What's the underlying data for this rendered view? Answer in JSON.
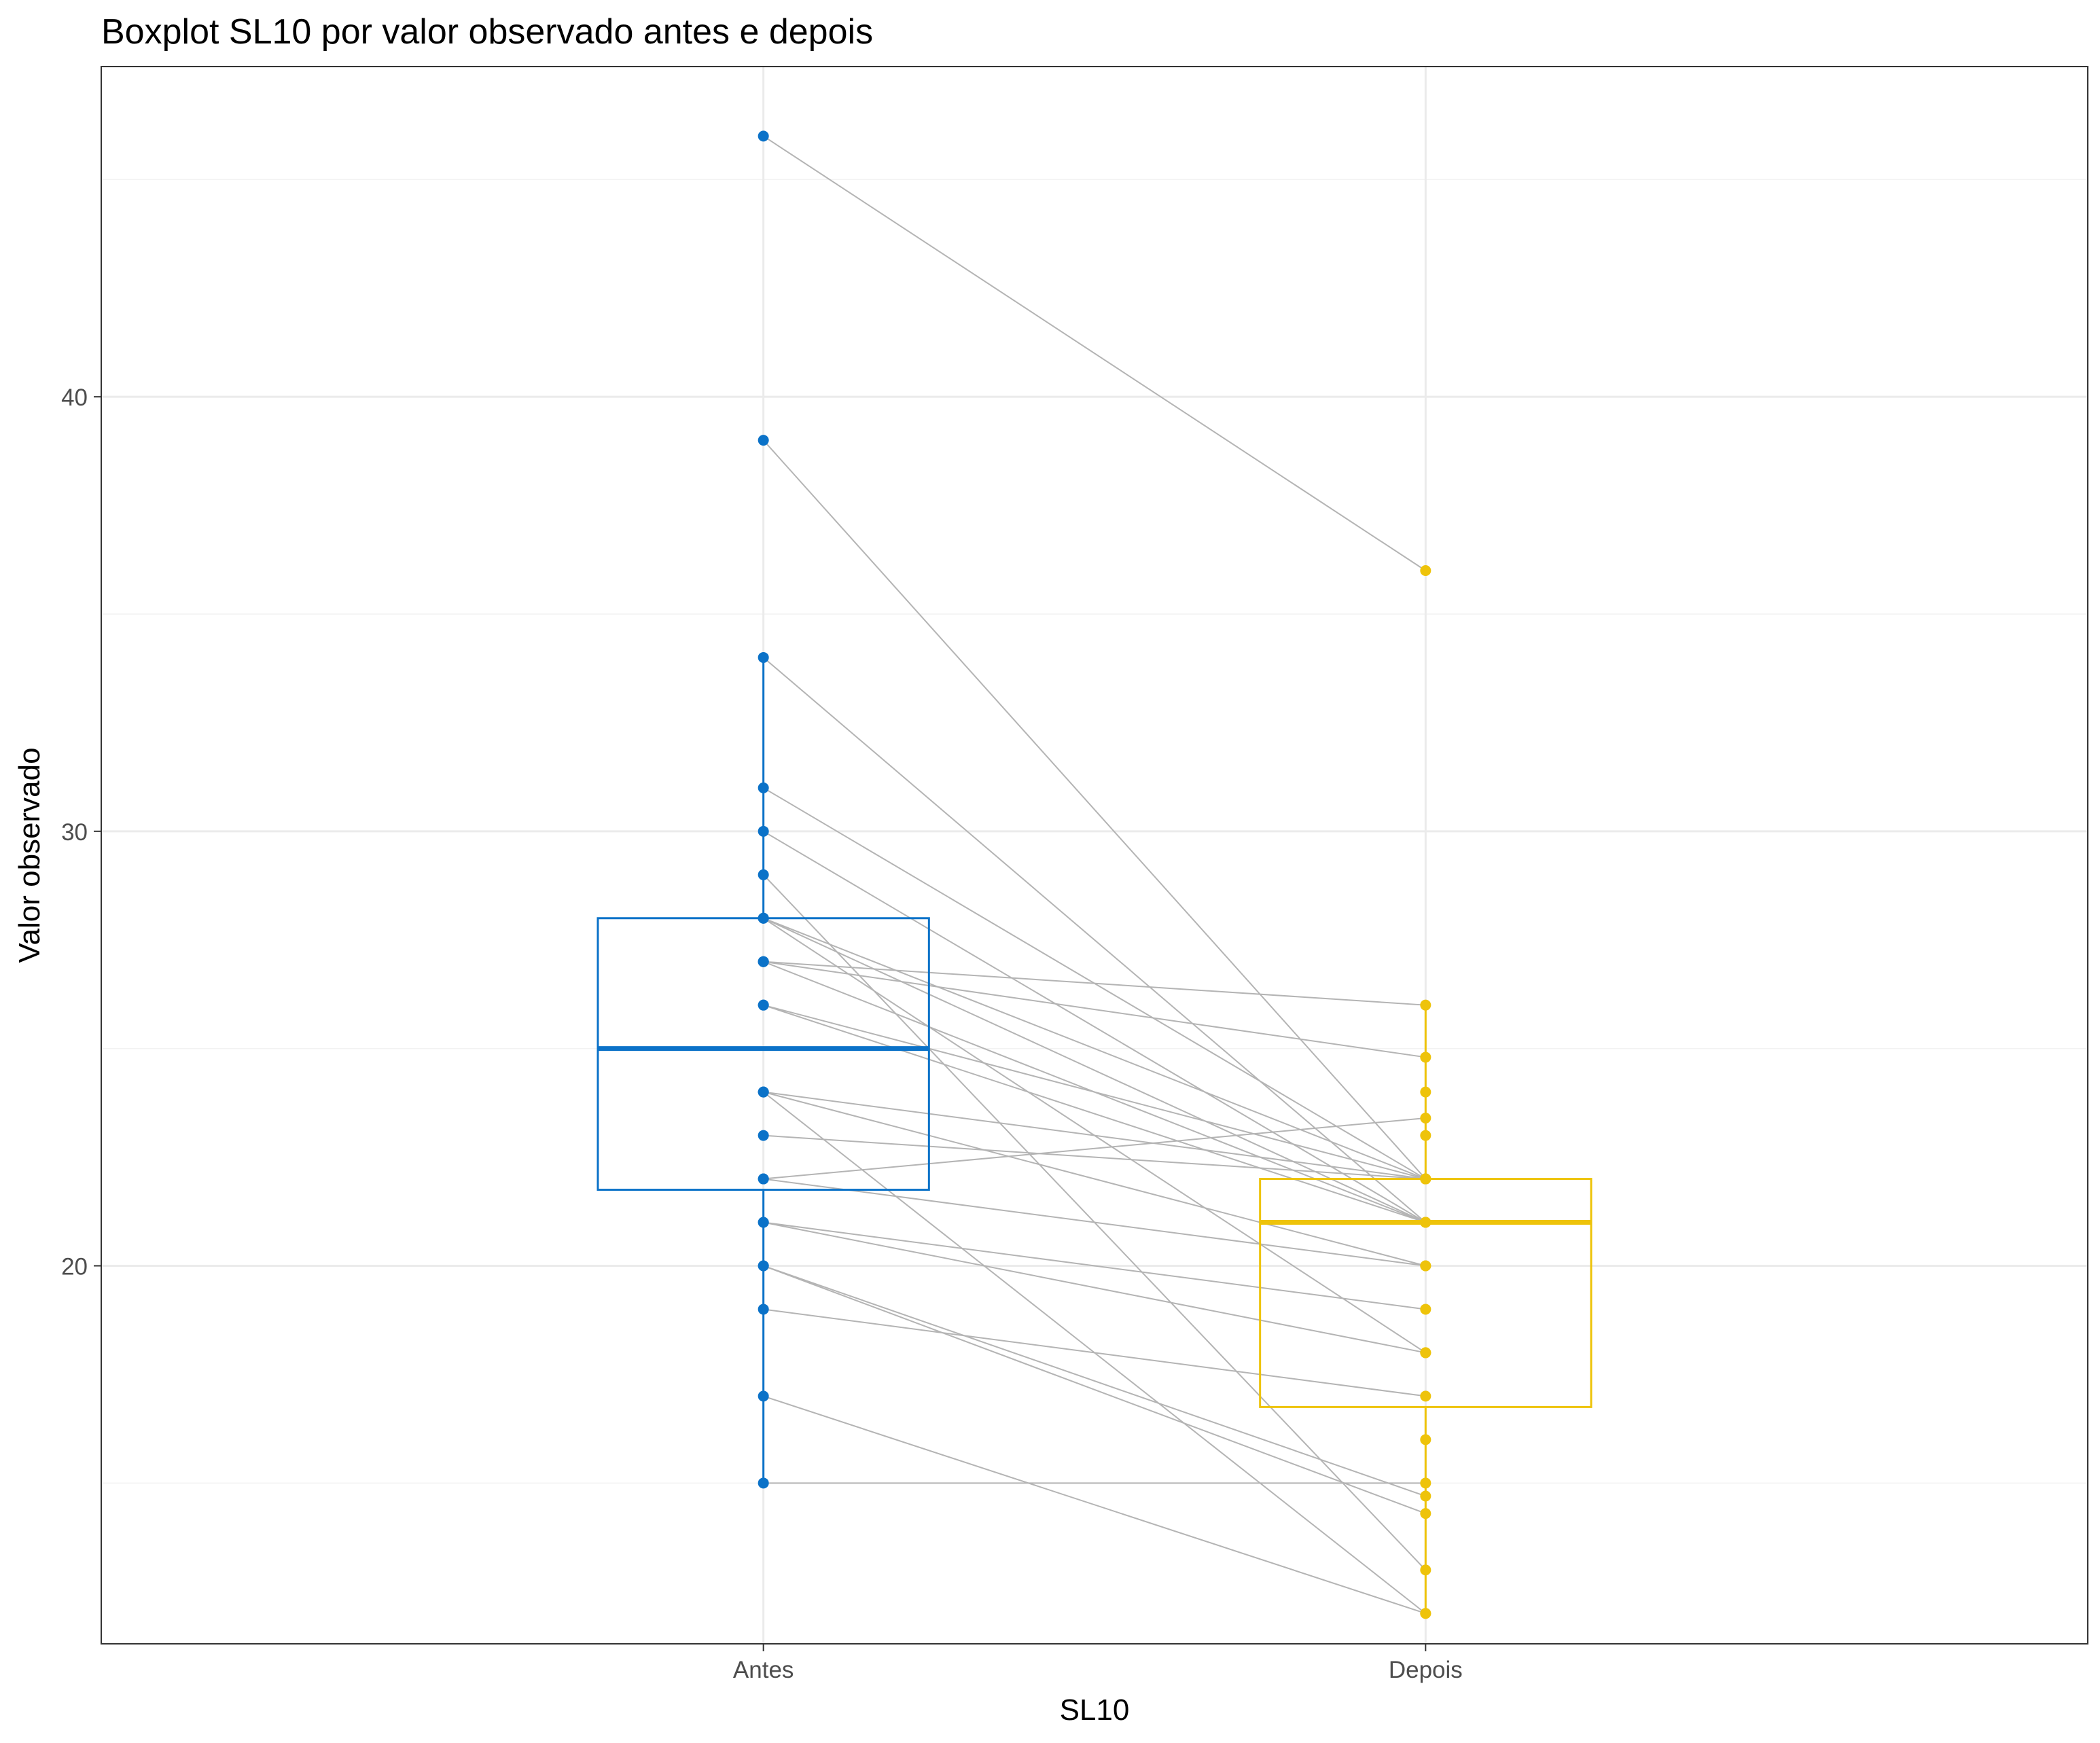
{
  "chart_data": {
    "type": "boxplot",
    "title": "Boxplot SL10 por valor observado antes e depois",
    "xlabel": "SL10",
    "ylabel": "Valor observado",
    "categories": [
      "Antes",
      "Depois"
    ],
    "ylim": [
      11.3,
      47.6
    ],
    "yticks_major": [
      20,
      30,
      40
    ],
    "yticks_minor": [
      15,
      25,
      35,
      45
    ],
    "grid": true,
    "legend": "none",
    "colors": {
      "Antes": "#0b72c8",
      "Depois": "#eec30a",
      "pair_line": "#b4b4b4"
    },
    "boxes": [
      {
        "category": "Antes",
        "lower_whisker": 15,
        "q1": 21.75,
        "median": 25,
        "q3": 28,
        "upper_whisker": 34
      },
      {
        "category": "Depois",
        "lower_whisker": 12,
        "q1": 16.75,
        "median": 21,
        "q3": 22,
        "upper_whisker": 26
      }
    ],
    "pairs": [
      {
        "antes": 46,
        "depois": 36
      },
      {
        "antes": 39,
        "depois": 22
      },
      {
        "antes": 34,
        "depois": 21
      },
      {
        "antes": 31,
        "depois": 22
      },
      {
        "antes": 30,
        "depois": 21
      },
      {
        "antes": 29,
        "depois": 13
      },
      {
        "antes": 28,
        "depois": 22
      },
      {
        "antes": 28,
        "depois": 21
      },
      {
        "antes": 28,
        "depois": 18
      },
      {
        "antes": 27,
        "depois": 26
      },
      {
        "antes": 27,
        "depois": 24.8
      },
      {
        "antes": 27,
        "depois": 21
      },
      {
        "antes": 26,
        "depois": 22
      },
      {
        "antes": 26,
        "depois": 21
      },
      {
        "antes": 24,
        "depois": 22
      },
      {
        "antes": 24,
        "depois": 12
      },
      {
        "antes": 24,
        "depois": 20
      },
      {
        "antes": 23,
        "depois": 22
      },
      {
        "antes": 22,
        "depois": 23.4
      },
      {
        "antes": 22,
        "depois": 20
      },
      {
        "antes": 21,
        "depois": 18
      },
      {
        "antes": 21,
        "depois": 19
      },
      {
        "antes": 20,
        "depois": 14.7
      },
      {
        "antes": 20,
        "depois": 14.3
      },
      {
        "antes": 19,
        "depois": 17
      },
      {
        "antes": 17,
        "depois": 12
      },
      {
        "antes": 15,
        "depois": 15
      }
    ],
    "extra_points": [
      {
        "category": "Depois",
        "value": 24
      },
      {
        "category": "Depois",
        "value": 23
      },
      {
        "category": "Depois",
        "value": 16
      }
    ]
  }
}
